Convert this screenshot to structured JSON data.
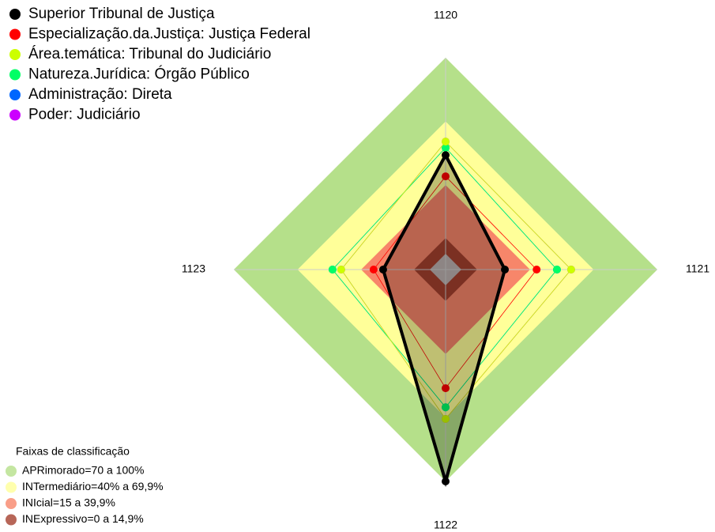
{
  "chart_data": {
    "type": "radar",
    "categories": [
      "1120",
      "1121",
      "1122",
      "1123"
    ],
    "rlim": [
      0,
      100
    ],
    "series": [
      {
        "name": "Superior Tribunal de Justiça",
        "color": "#000000",
        "values": [
          54,
          28,
          100,
          29.5
        ]
      },
      {
        "name": "Especialização.da.Justiça: Justiça Federal",
        "color": "#ff0000",
        "values": [
          44,
          43,
          56,
          34
        ]
      },
      {
        "name": "Área.temática: Tribunal do Judiciário",
        "color": "#ccff00",
        "values": [
          60.4,
          59.3,
          70.5,
          49.3
        ]
      },
      {
        "name": "Natureza.Jurídica: Órgão Público",
        "color": "#00ff66",
        "values": [
          57.5,
          52.6,
          65,
          53.4
        ]
      },
      {
        "name": "Administração: Direta",
        "color": "#0066ff",
        "values": [
          57.5,
          52.6,
          65,
          53.4
        ]
      },
      {
        "name": "Poder: Judiciário",
        "color": "#cc00ff",
        "values": [
          60.4,
          59.3,
          70.5,
          49.3
        ]
      }
    ],
    "bands_title": "Faixas de classificação",
    "bands": [
      {
        "label": "APRimorado=70 a 100%",
        "color": "#b5e08a",
        "from": 70,
        "to": 100
      },
      {
        "label": "INTermediário=40% a 69,9%",
        "color": "#ffff99",
        "from": 40,
        "to": 69.9
      },
      {
        "label": "INIcial=15 a 39,9%",
        "color": "#f7866a",
        "from": 15,
        "to": 39.9
      },
      {
        "label": "INExpressivo=0 a 14,9%",
        "color": "#a5402e",
        "from": 0,
        "to": 14.9
      }
    ]
  }
}
